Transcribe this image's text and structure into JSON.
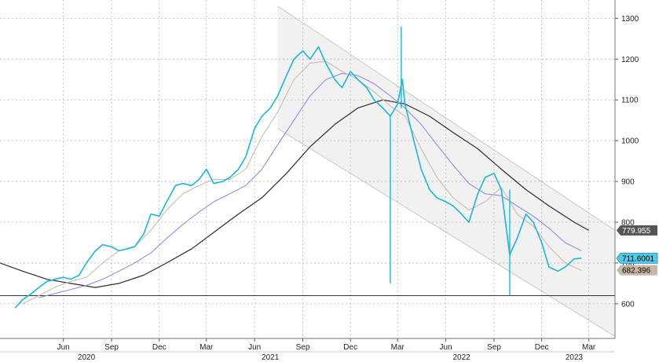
{
  "chart_data": {
    "type": "line",
    "title": "",
    "xlabel": "",
    "ylabel": "",
    "ylim": [
      515,
      1345
    ],
    "y_ticks": [
      600,
      700,
      800,
      900,
      1000,
      1100,
      1200,
      1300
    ],
    "grid": true,
    "x_ticks": [
      {
        "label": "Jun",
        "date": "2020-06-01"
      },
      {
        "label": "Sep",
        "date": "2020-09-01"
      },
      {
        "label": "Dec",
        "date": "2020-12-01"
      },
      {
        "label": "Mar",
        "date": "2021-03-01"
      },
      {
        "label": "Jun",
        "date": "2021-06-01"
      },
      {
        "label": "Sep",
        "date": "2021-09-01"
      },
      {
        "label": "Dec",
        "date": "2021-12-01"
      },
      {
        "label": "Mar",
        "date": "2022-03-01"
      },
      {
        "label": "Jun",
        "date": "2022-06-01"
      },
      {
        "label": "Sep",
        "date": "2022-09-01"
      },
      {
        "label": "Dec",
        "date": "2022-12-01"
      },
      {
        "label": "Mar",
        "date": "2023-03-01"
      }
    ],
    "year_labels": [
      {
        "label": "2020",
        "date": "2020-07-15"
      },
      {
        "label": "2021",
        "date": "2021-07-01"
      },
      {
        "label": "2022",
        "date": "2022-07-01"
      },
      {
        "label": "2023",
        "date": "2023-02-01"
      }
    ],
    "colors": {
      "price": "#1ab8d6",
      "ma_short": "#c9b7a6",
      "ma_mid": "#8a84e0",
      "ma_long": "#2b2b2b",
      "channel": "#c8c8c8",
      "horizontal": "#333333"
    },
    "horizontal_line": 620,
    "channel": {
      "upper": [
        {
          "x": "2021-07-15",
          "y": 1330
        },
        {
          "x": "2023-04-20",
          "y": 780
        }
      ],
      "lower": [
        {
          "x": "2021-07-15",
          "y": 1030
        },
        {
          "x": "2023-04-20",
          "y": 520
        }
      ]
    },
    "series": [
      {
        "key": "price",
        "points": [
          [
            "2020-03-01",
            590
          ],
          [
            "2020-03-15",
            610
          ],
          [
            "2020-04-01",
            625
          ],
          [
            "2020-04-15",
            640
          ],
          [
            "2020-05-01",
            655
          ],
          [
            "2020-05-15",
            660
          ],
          [
            "2020-06-01",
            665
          ],
          [
            "2020-06-15",
            660
          ],
          [
            "2020-07-01",
            670
          ],
          [
            "2020-07-15",
            700
          ],
          [
            "2020-08-01",
            730
          ],
          [
            "2020-08-15",
            745
          ],
          [
            "2020-09-01",
            740
          ],
          [
            "2020-09-15",
            730
          ],
          [
            "2020-10-01",
            735
          ],
          [
            "2020-10-15",
            740
          ],
          [
            "2020-11-01",
            770
          ],
          [
            "2020-11-15",
            820
          ],
          [
            "2020-12-01",
            815
          ],
          [
            "2020-12-15",
            850
          ],
          [
            "2021-01-01",
            890
          ],
          [
            "2021-01-15",
            895
          ],
          [
            "2021-02-01",
            890
          ],
          [
            "2021-02-15",
            905
          ],
          [
            "2021-03-01",
            930
          ],
          [
            "2021-03-15",
            895
          ],
          [
            "2021-04-01",
            900
          ],
          [
            "2021-04-15",
            910
          ],
          [
            "2021-05-01",
            930
          ],
          [
            "2021-05-15",
            960
          ],
          [
            "2021-06-01",
            1030
          ],
          [
            "2021-06-15",
            1060
          ],
          [
            "2021-07-01",
            1080
          ],
          [
            "2021-07-15",
            1110
          ],
          [
            "2021-08-01",
            1160
          ],
          [
            "2021-08-15",
            1200
          ],
          [
            "2021-09-01",
            1220
          ],
          [
            "2021-09-15",
            1200
          ],
          [
            "2021-10-01",
            1230
          ],
          [
            "2021-10-15",
            1190
          ],
          [
            "2021-11-01",
            1150
          ],
          [
            "2021-11-15",
            1130
          ],
          [
            "2021-12-01",
            1170
          ],
          [
            "2021-12-15",
            1150
          ],
          [
            "2022-01-01",
            1130
          ],
          [
            "2022-01-15",
            1100
          ],
          [
            "2022-02-01",
            1080
          ],
          [
            "2022-02-15",
            1060
          ],
          [
            "2022-03-01",
            1090
          ],
          [
            "2022-03-10",
            1150
          ],
          [
            "2022-03-15",
            1090
          ],
          [
            "2022-04-01",
            1000
          ],
          [
            "2022-04-15",
            930
          ],
          [
            "2022-05-01",
            880
          ],
          [
            "2022-05-15",
            860
          ],
          [
            "2022-06-01",
            850
          ],
          [
            "2022-06-15",
            840
          ],
          [
            "2022-07-01",
            820
          ],
          [
            "2022-07-15",
            800
          ],
          [
            "2022-08-01",
            870
          ],
          [
            "2022-08-15",
            910
          ],
          [
            "2022-09-01",
            920
          ],
          [
            "2022-09-15",
            880
          ],
          [
            "2022-10-01",
            720
          ],
          [
            "2022-10-15",
            760
          ],
          [
            "2022-11-01",
            820
          ],
          [
            "2022-11-15",
            800
          ],
          [
            "2022-12-01",
            750
          ],
          [
            "2022-12-15",
            690
          ],
          [
            "2023-01-01",
            680
          ],
          [
            "2023-01-15",
            690
          ],
          [
            "2023-02-01",
            710
          ],
          [
            "2023-02-15",
            712
          ]
        ]
      },
      {
        "key": "ma_short",
        "points": [
          [
            "2020-03-15",
            600
          ],
          [
            "2020-04-15",
            620
          ],
          [
            "2020-05-15",
            640
          ],
          [
            "2020-06-15",
            655
          ],
          [
            "2020-07-15",
            665
          ],
          [
            "2020-08-15",
            700
          ],
          [
            "2020-09-15",
            730
          ],
          [
            "2020-10-15",
            740
          ],
          [
            "2020-11-15",
            780
          ],
          [
            "2020-12-15",
            830
          ],
          [
            "2021-01-15",
            870
          ],
          [
            "2021-02-15",
            890
          ],
          [
            "2021-03-15",
            905
          ],
          [
            "2021-04-15",
            905
          ],
          [
            "2021-05-15",
            930
          ],
          [
            "2021-06-15",
            1010
          ],
          [
            "2021-07-15",
            1070
          ],
          [
            "2021-08-15",
            1150
          ],
          [
            "2021-09-15",
            1190
          ],
          [
            "2021-10-15",
            1195
          ],
          [
            "2021-11-15",
            1170
          ],
          [
            "2021-12-15",
            1150
          ],
          [
            "2022-01-15",
            1120
          ],
          [
            "2022-02-15",
            1085
          ],
          [
            "2022-03-15",
            1060
          ],
          [
            "2022-04-15",
            980
          ],
          [
            "2022-05-15",
            910
          ],
          [
            "2022-06-15",
            860
          ],
          [
            "2022-07-15",
            830
          ],
          [
            "2022-08-15",
            850
          ],
          [
            "2022-09-15",
            885
          ],
          [
            "2022-10-15",
            820
          ],
          [
            "2022-11-15",
            790
          ],
          [
            "2022-12-15",
            740
          ],
          [
            "2023-01-15",
            700
          ],
          [
            "2023-02-15",
            682
          ]
        ]
      },
      {
        "key": "ma_mid",
        "points": [
          [
            "2020-04-15",
            615
          ],
          [
            "2020-05-15",
            625
          ],
          [
            "2020-06-15",
            635
          ],
          [
            "2020-07-15",
            645
          ],
          [
            "2020-08-15",
            660
          ],
          [
            "2020-09-15",
            680
          ],
          [
            "2020-10-15",
            700
          ],
          [
            "2020-11-15",
            725
          ],
          [
            "2020-12-15",
            760
          ],
          [
            "2021-01-15",
            795
          ],
          [
            "2021-02-15",
            825
          ],
          [
            "2021-03-15",
            850
          ],
          [
            "2021-04-15",
            870
          ],
          [
            "2021-05-15",
            890
          ],
          [
            "2021-06-15",
            930
          ],
          [
            "2021-07-15",
            990
          ],
          [
            "2021-08-15",
            1050
          ],
          [
            "2021-09-15",
            1110
          ],
          [
            "2021-10-15",
            1150
          ],
          [
            "2021-11-15",
            1165
          ],
          [
            "2021-12-15",
            1160
          ],
          [
            "2022-01-15",
            1140
          ],
          [
            "2022-02-15",
            1110
          ],
          [
            "2022-03-15",
            1080
          ],
          [
            "2022-04-15",
            1040
          ],
          [
            "2022-05-15",
            990
          ],
          [
            "2022-06-15",
            940
          ],
          [
            "2022-07-15",
            895
          ],
          [
            "2022-08-15",
            870
          ],
          [
            "2022-09-15",
            865
          ],
          [
            "2022-10-15",
            840
          ],
          [
            "2022-11-15",
            815
          ],
          [
            "2022-12-15",
            785
          ],
          [
            "2023-01-15",
            750
          ],
          [
            "2023-02-15",
            730
          ]
        ]
      },
      {
        "key": "ma_long",
        "points": [
          [
            "2020-02-01",
            700
          ],
          [
            "2020-03-15",
            680
          ],
          [
            "2020-05-01",
            660
          ],
          [
            "2020-06-15",
            650
          ],
          [
            "2020-08-01",
            640
          ],
          [
            "2020-09-15",
            650
          ],
          [
            "2020-11-01",
            670
          ],
          [
            "2020-12-15",
            700
          ],
          [
            "2021-02-01",
            735
          ],
          [
            "2021-03-15",
            775
          ],
          [
            "2021-05-01",
            820
          ],
          [
            "2021-06-15",
            860
          ],
          [
            "2021-08-01",
            920
          ],
          [
            "2021-09-15",
            985
          ],
          [
            "2021-11-01",
            1040
          ],
          [
            "2021-12-15",
            1080
          ],
          [
            "2022-02-01",
            1100
          ],
          [
            "2022-03-15",
            1090
          ],
          [
            "2022-05-01",
            1060
          ],
          [
            "2022-06-15",
            1020
          ],
          [
            "2022-08-01",
            980
          ],
          [
            "2022-09-15",
            930
          ],
          [
            "2022-11-01",
            880
          ],
          [
            "2022-12-15",
            840
          ],
          [
            "2023-02-01",
            800
          ],
          [
            "2023-03-01",
            780
          ]
        ]
      }
    ],
    "spikes": [
      {
        "date": "2022-03-08",
        "high": 1280,
        "low": 1080
      },
      {
        "date": "2022-02-15",
        "high": 1060,
        "low": 650
      },
      {
        "date": "2022-10-01",
        "high": 880,
        "low": 620
      }
    ],
    "last_values": [
      {
        "key": "ma_long",
        "label": "779.955",
        "value": 779.955,
        "bg": "#555555",
        "fg": "#ffffff"
      },
      {
        "key": "price",
        "label": "711.6001",
        "value": 711.6001,
        "bg": "#55c8e8",
        "fg": "#000000"
      },
      {
        "key": "ma_short",
        "label": "682.396",
        "value": 682.396,
        "bg": "#c9b7a6",
        "fg": "#000000"
      }
    ]
  }
}
